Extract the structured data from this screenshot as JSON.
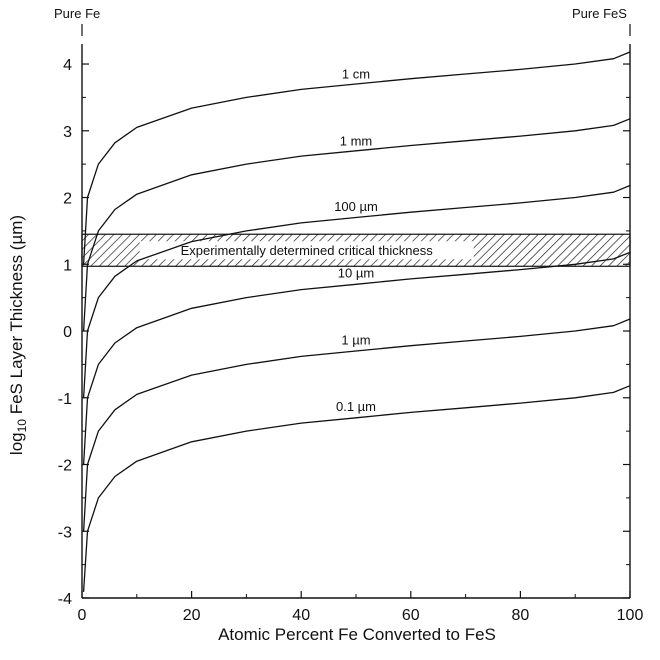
{
  "chart_data": {
    "type": "line",
    "xlabel": "Atomic Percent Fe Converted to FeS",
    "ylabel_main": "log",
    "ylabel_sub": "10",
    "ylabel_rest": " FeS Layer Thickness (µm)",
    "xlim": [
      0,
      100
    ],
    "ylim": [
      -4,
      4.3
    ],
    "x_ticks": [
      0,
      20,
      40,
      60,
      80,
      100
    ],
    "y_ticks": [
      -4,
      -3,
      -2,
      -1,
      0,
      1,
      2,
      3,
      4
    ],
    "x_tick_labels": [
      "0",
      "20",
      "40",
      "60",
      "80",
      "100"
    ],
    "y_tick_labels": [
      "-4",
      "-3",
      "-2",
      "-1",
      "0",
      "1",
      "2",
      "3",
      "4"
    ],
    "top_labels": {
      "left": "Pure Fe",
      "right": "Pure FeS"
    },
    "band": {
      "y_range": [
        0.97,
        1.45
      ],
      "label": "Experimentally determined critical thickness",
      "pattern": "hatched"
    },
    "series": [
      {
        "name": "1 cm",
        "label_at": [
          50,
          3.78
        ],
        "points": [
          [
            0.3,
            1.0
          ],
          [
            1,
            2.0
          ],
          [
            3,
            2.5
          ],
          [
            6,
            2.82
          ],
          [
            10,
            3.05
          ],
          [
            20,
            3.34
          ],
          [
            30,
            3.5
          ],
          [
            40,
            3.62
          ],
          [
            50,
            3.7
          ],
          [
            60,
            3.78
          ],
          [
            70,
            3.85
          ],
          [
            80,
            3.92
          ],
          [
            90,
            4.0
          ],
          [
            97,
            4.08
          ],
          [
            100,
            4.18
          ]
        ]
      },
      {
        "name": "1 mm",
        "label_at": [
          50,
          2.78
        ],
        "points": [
          [
            0.3,
            0.0
          ],
          [
            1,
            1.0
          ],
          [
            3,
            1.5
          ],
          [
            6,
            1.82
          ],
          [
            10,
            2.05
          ],
          [
            20,
            2.34
          ],
          [
            30,
            2.5
          ],
          [
            40,
            2.62
          ],
          [
            50,
            2.7
          ],
          [
            60,
            2.78
          ],
          [
            70,
            2.85
          ],
          [
            80,
            2.92
          ],
          [
            90,
            3.0
          ],
          [
            97,
            3.08
          ],
          [
            100,
            3.18
          ]
        ]
      },
      {
        "name": "100 µm",
        "label_at": [
          50,
          1.8
        ],
        "points": [
          [
            0.3,
            -1.0
          ],
          [
            1,
            0.0
          ],
          [
            3,
            0.5
          ],
          [
            6,
            0.82
          ],
          [
            10,
            1.05
          ],
          [
            20,
            1.34
          ],
          [
            30,
            1.5
          ],
          [
            40,
            1.62
          ],
          [
            50,
            1.7
          ],
          [
            60,
            1.78
          ],
          [
            70,
            1.85
          ],
          [
            80,
            1.92
          ],
          [
            90,
            2.0
          ],
          [
            97,
            2.08
          ],
          [
            100,
            2.18
          ]
        ]
      },
      {
        "name": "10 µm",
        "label_at": [
          50,
          0.8
        ],
        "points": [
          [
            0.3,
            -2.0
          ],
          [
            1,
            -1.0
          ],
          [
            3,
            -0.5
          ],
          [
            6,
            -0.18
          ],
          [
            10,
            0.05
          ],
          [
            20,
            0.34
          ],
          [
            30,
            0.5
          ],
          [
            40,
            0.62
          ],
          [
            50,
            0.7
          ],
          [
            60,
            0.78
          ],
          [
            70,
            0.85
          ],
          [
            80,
            0.92
          ],
          [
            90,
            1.0
          ],
          [
            97,
            1.08
          ],
          [
            100,
            1.18
          ]
        ]
      },
      {
        "name": "1 µm",
        "label_at": [
          50,
          -0.2
        ],
        "points": [
          [
            0.3,
            -3.0
          ],
          [
            1,
            -2.0
          ],
          [
            3,
            -1.5
          ],
          [
            6,
            -1.18
          ],
          [
            10,
            -0.95
          ],
          [
            20,
            -0.66
          ],
          [
            30,
            -0.5
          ],
          [
            40,
            -0.38
          ],
          [
            50,
            -0.3
          ],
          [
            60,
            -0.22
          ],
          [
            70,
            -0.15
          ],
          [
            80,
            -0.08
          ],
          [
            90,
            0.0
          ],
          [
            97,
            0.08
          ],
          [
            100,
            0.18
          ]
        ]
      },
      {
        "name": "0.1 µm",
        "label_at": [
          50,
          -1.2
        ],
        "points": [
          [
            0.3,
            -3.9
          ],
          [
            1,
            -3.0
          ],
          [
            3,
            -2.5
          ],
          [
            6,
            -2.18
          ],
          [
            10,
            -1.95
          ],
          [
            20,
            -1.66
          ],
          [
            30,
            -1.5
          ],
          [
            40,
            -1.38
          ],
          [
            50,
            -1.3
          ],
          [
            60,
            -1.22
          ],
          [
            70,
            -1.15
          ],
          [
            80,
            -1.08
          ],
          [
            90,
            -1.0
          ],
          [
            97,
            -0.92
          ],
          [
            100,
            -0.82
          ]
        ]
      }
    ]
  }
}
